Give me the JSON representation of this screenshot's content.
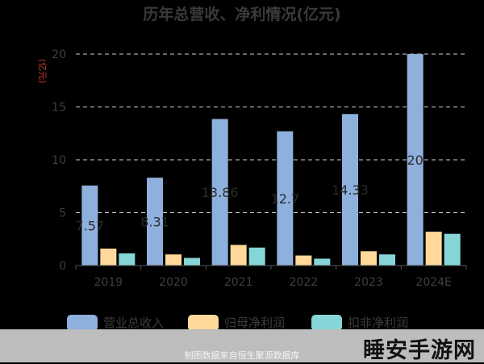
{
  "chart_data": {
    "type": "bar",
    "title": "历年总营收、净利情况(亿元)",
    "ylabel": "(亿元)",
    "categories": [
      "2019",
      "2020",
      "2021",
      "2022",
      "2023",
      "2024E"
    ],
    "ylim": [
      0,
      20
    ],
    "yticks": [
      0,
      5,
      10,
      15,
      20
    ],
    "grid": true,
    "legend_position": "bottom",
    "series": [
      {
        "name": "营业总收入",
        "color": "#8eb0dc",
        "values": [
          7.57,
          8.31,
          13.86,
          12.7,
          14.33,
          20.0
        ]
      },
      {
        "name": "归母净利润",
        "color": "#ffd89a",
        "values": [
          1.6,
          1.05,
          1.95,
          0.95,
          1.35,
          3.2
        ]
      },
      {
        "name": "扣非净利润",
        "color": "#86d6d8",
        "values": [
          1.15,
          0.72,
          1.7,
          0.65,
          1.05,
          3.0
        ]
      }
    ],
    "data_labels": [
      "7.57",
      "8.31",
      "13.86",
      "12.7",
      "14.33",
      "20"
    ]
  },
  "footer": {
    "source": "制图数据来自恒生聚源数据库",
    "watermark": "睡安手游网"
  }
}
